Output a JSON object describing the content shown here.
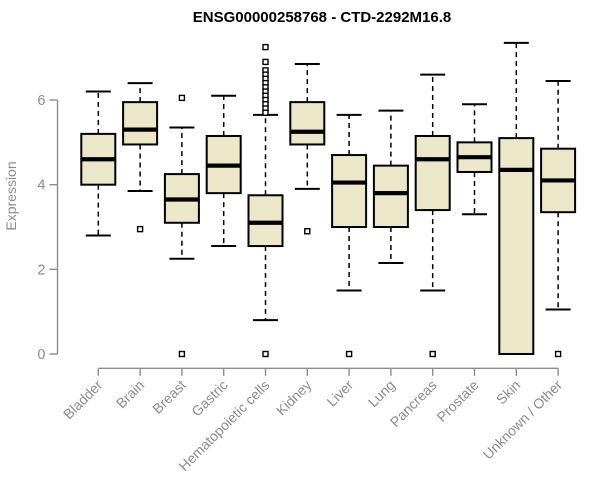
{
  "chart_data": {
    "type": "boxplot",
    "title": "ENSG00000258768 - CTD-2292M16.8",
    "xlabel": "",
    "ylabel": "Expression",
    "yticks": [
      0,
      2,
      4,
      6
    ],
    "ylim": [
      0,
      7.5
    ],
    "grid": false,
    "legend": "none",
    "x_label_rotation_deg": 45,
    "categories": [
      "Bladder",
      "Brain",
      "Breast",
      "Gastric",
      "Hematopoietic cells",
      "Kidney",
      "Liver",
      "Lung",
      "Pancreas",
      "Prostate",
      "Skin",
      "Unknown / Other"
    ],
    "series": [
      {
        "category": "Bladder",
        "whisker_low": 2.8,
        "q1": 4.0,
        "median": 4.6,
        "q3": 5.2,
        "whisker_high": 6.2,
        "outliers": []
      },
      {
        "category": "Brain",
        "whisker_low": 3.85,
        "q1": 4.95,
        "median": 5.3,
        "q3": 5.95,
        "whisker_high": 6.4,
        "outliers": [
          2.95
        ]
      },
      {
        "category": "Breast",
        "whisker_low": 2.25,
        "q1": 3.1,
        "median": 3.65,
        "q3": 4.25,
        "whisker_high": 5.35,
        "outliers": [
          6.05,
          0
        ]
      },
      {
        "category": "Gastric",
        "whisker_low": 2.55,
        "q1": 3.8,
        "median": 4.45,
        "q3": 5.15,
        "whisker_high": 6.1,
        "outliers": []
      },
      {
        "category": "Hematopoietic cells",
        "whisker_low": 0.8,
        "q1": 2.55,
        "median": 3.1,
        "q3": 3.75,
        "whisker_high": 5.65,
        "outliers": [
          7.25,
          6.9,
          6.7,
          6.6,
          6.5,
          6.4,
          6.3,
          6.2,
          6.1,
          6.0,
          5.9,
          5.8,
          5.7,
          0
        ]
      },
      {
        "category": "Kidney",
        "whisker_low": 3.9,
        "q1": 4.95,
        "median": 5.25,
        "q3": 5.95,
        "whisker_high": 6.85,
        "outliers": [
          2.9
        ]
      },
      {
        "category": "Liver",
        "whisker_low": 1.5,
        "q1": 3.0,
        "median": 4.05,
        "q3": 4.7,
        "whisker_high": 5.65,
        "outliers": [
          0
        ]
      },
      {
        "category": "Lung",
        "whisker_low": 2.15,
        "q1": 3.0,
        "median": 3.8,
        "q3": 4.45,
        "whisker_high": 5.75,
        "outliers": []
      },
      {
        "category": "Pancreas",
        "whisker_low": 1.5,
        "q1": 3.4,
        "median": 4.6,
        "q3": 5.15,
        "whisker_high": 6.6,
        "outliers": [
          0
        ]
      },
      {
        "category": "Prostate",
        "whisker_low": 3.3,
        "q1": 4.3,
        "median": 4.65,
        "q3": 5.0,
        "whisker_high": 5.9,
        "outliers": []
      },
      {
        "category": "Skin",
        "whisker_low": 0.0,
        "q1": 0.0,
        "median": 4.35,
        "q3": 5.1,
        "whisker_high": 7.35,
        "outliers": []
      },
      {
        "category": "Unknown / Other",
        "whisker_low": 1.05,
        "q1": 3.35,
        "median": 4.1,
        "q3": 4.85,
        "whisker_high": 6.45,
        "outliers": [
          0
        ]
      }
    ],
    "colors": {
      "box_fill": "#ece7c8",
      "box_border": "#000000",
      "median": "#000000",
      "whisker": "#000000",
      "outlier": "#000000",
      "axis": "#8c8c8c",
      "tick_label": "#8c8c8c",
      "title": "#000000",
      "background": "#ffffff"
    }
  }
}
